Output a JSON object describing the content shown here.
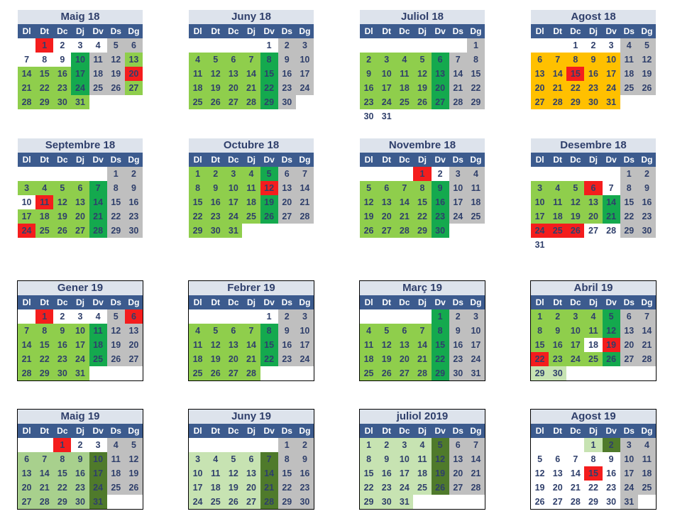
{
  "weekday_labels": [
    "Dl",
    "Dt",
    "Dc",
    "Dj",
    "Dv",
    "Ds",
    "Dg"
  ],
  "legend_colors": {
    "g": "#8fce4c",
    "dg": "#14a94e",
    "r": "#f41d1d",
    "gr": "#bfbfbf",
    "o": "#ffc000",
    "w": "#ffffff",
    "lg": "#c7e3b2",
    "mg": "#a8d08d",
    "og": "#4f7a2b"
  },
  "months": [
    {
      "title": "Maig 18",
      "offset": 1,
      "days": 31,
      "colors": [
        "r",
        "w",
        "w",
        "w",
        "gr",
        "gr",
        "w",
        "w",
        "w",
        "dg",
        "gr",
        "gr",
        "g",
        "g",
        "g",
        "g",
        "dg",
        "gr",
        "gr",
        "r",
        "g",
        "g",
        "g",
        "dg",
        "gr",
        "gr",
        "g",
        "g",
        "g",
        "g",
        "g"
      ]
    },
    {
      "title": "Juny 18",
      "offset": 4,
      "days": 30,
      "colors": [
        "w",
        "gr",
        "gr",
        "g",
        "g",
        "g",
        "g",
        "dg",
        "gr",
        "gr",
        "g",
        "g",
        "g",
        "g",
        "dg",
        "gr",
        "gr",
        "g",
        "g",
        "g",
        "g",
        "dg",
        "gr",
        "gr",
        "g",
        "g",
        "g",
        "g",
        "dg",
        "gr"
      ]
    },
    {
      "title": "Juliol 18",
      "offset": 6,
      "days": 31,
      "colors": [
        "gr",
        "g",
        "g",
        "g",
        "g",
        "dg",
        "gr",
        "gr",
        "g",
        "g",
        "g",
        "g",
        "dg",
        "gr",
        "gr",
        "g",
        "g",
        "g",
        "g",
        "dg",
        "gr",
        "gr",
        "g",
        "g",
        "g",
        "g",
        "dg",
        "gr",
        "gr",
        "w",
        "w"
      ]
    },
    {
      "title": "Agost 18",
      "offset": 2,
      "days": 31,
      "colors": [
        "w",
        "w",
        "w",
        "gr",
        "gr",
        "o",
        "o",
        "o",
        "o",
        "o",
        "gr",
        "gr",
        "o",
        "o",
        "r",
        "o",
        "o",
        "gr",
        "gr",
        "o",
        "o",
        "o",
        "o",
        "o",
        "gr",
        "gr",
        "o",
        "o",
        "o",
        "o",
        "o"
      ]
    },
    {
      "title": "Septembre 18",
      "offset": 5,
      "days": 30,
      "colors": [
        "gr",
        "gr",
        "g",
        "g",
        "g",
        "g",
        "dg",
        "gr",
        "gr",
        "w",
        "r",
        "g",
        "g",
        "dg",
        "gr",
        "gr",
        "g",
        "g",
        "g",
        "g",
        "dg",
        "gr",
        "gr",
        "r",
        "g",
        "g",
        "g",
        "dg",
        "gr",
        "gr"
      ]
    },
    {
      "title": "Octubre 18",
      "offset": 0,
      "days": 31,
      "colors": [
        "g",
        "g",
        "g",
        "g",
        "dg",
        "gr",
        "gr",
        "g",
        "g",
        "g",
        "g",
        "r",
        "gr",
        "gr",
        "g",
        "g",
        "g",
        "g",
        "dg",
        "gr",
        "gr",
        "g",
        "g",
        "g",
        "g",
        "dg",
        "gr",
        "gr",
        "g",
        "g",
        "g"
      ]
    },
    {
      "title": "Novembre 18",
      "offset": 3,
      "days": 30,
      "colors": [
        "r",
        "w",
        "gr",
        "gr",
        "g",
        "g",
        "g",
        "g",
        "dg",
        "gr",
        "gr",
        "g",
        "g",
        "g",
        "g",
        "dg",
        "gr",
        "gr",
        "g",
        "g",
        "g",
        "g",
        "dg",
        "gr",
        "gr",
        "g",
        "g",
        "g",
        "g",
        "dg"
      ]
    },
    {
      "title": "Desembre 18",
      "offset": 5,
      "days": 31,
      "colors": [
        "gr",
        "gr",
        "g",
        "g",
        "g",
        "r",
        "w",
        "gr",
        "gr",
        "g",
        "g",
        "g",
        "g",
        "dg",
        "gr",
        "gr",
        "g",
        "g",
        "g",
        "g",
        "dg",
        "gr",
        "gr",
        "r",
        "r",
        "r",
        "w",
        "w",
        "gr",
        "gr",
        "w"
      ]
    },
    {
      "title": "Gener 19",
      "offset": 1,
      "days": 31,
      "colors": [
        "r",
        "w",
        "w",
        "w",
        "gr",
        "r",
        "g",
        "g",
        "g",
        "g",
        "dg",
        "gr",
        "gr",
        "g",
        "g",
        "g",
        "g",
        "dg",
        "gr",
        "gr",
        "g",
        "g",
        "g",
        "g",
        "dg",
        "gr",
        "gr",
        "g",
        "g",
        "g",
        "g"
      ]
    },
    {
      "title": "Febrer 19",
      "offset": 4,
      "days": 28,
      "colors": [
        "w",
        "gr",
        "gr",
        "g",
        "g",
        "g",
        "g",
        "dg",
        "gr",
        "gr",
        "g",
        "g",
        "g",
        "g",
        "dg",
        "gr",
        "gr",
        "g",
        "g",
        "g",
        "g",
        "dg",
        "gr",
        "gr",
        "g",
        "g",
        "g",
        "g"
      ]
    },
    {
      "title": "Març 19",
      "offset": 4,
      "days": 31,
      "colors": [
        "dg",
        "gr",
        "gr",
        "g",
        "g",
        "g",
        "g",
        "dg",
        "gr",
        "gr",
        "g",
        "g",
        "g",
        "g",
        "dg",
        "gr",
        "gr",
        "g",
        "g",
        "g",
        "g",
        "dg",
        "gr",
        "gr",
        "g",
        "g",
        "g",
        "g",
        "dg",
        "gr",
        "gr"
      ]
    },
    {
      "title": "Abril 19",
      "offset": 0,
      "days": 30,
      "colors": [
        "g",
        "g",
        "g",
        "g",
        "dg",
        "gr",
        "gr",
        "g",
        "g",
        "g",
        "g",
        "dg",
        "gr",
        "gr",
        "g",
        "g",
        "g",
        "w",
        "r",
        "gr",
        "gr",
        "r",
        "g",
        "g",
        "g",
        "dg",
        "gr",
        "gr",
        "lg",
        "lg"
      ]
    },
    {
      "title": "Maig 19",
      "offset": 2,
      "days": 31,
      "colors": [
        "r",
        "w",
        "w",
        "gr",
        "gr",
        "mg",
        "mg",
        "mg",
        "mg",
        "og",
        "gr",
        "gr",
        "mg",
        "mg",
        "mg",
        "mg",
        "og",
        "gr",
        "gr",
        "mg",
        "mg",
        "mg",
        "mg",
        "og",
        "gr",
        "gr",
        "mg",
        "mg",
        "mg",
        "mg",
        "og"
      ]
    },
    {
      "title": "Juny 19",
      "offset": 5,
      "days": 30,
      "colors": [
        "gr",
        "gr",
        "lg",
        "lg",
        "lg",
        "lg",
        "og",
        "gr",
        "gr",
        "lg",
        "lg",
        "lg",
        "lg",
        "og",
        "gr",
        "gr",
        "lg",
        "lg",
        "lg",
        "lg",
        "og",
        "gr",
        "gr",
        "lg",
        "lg",
        "lg",
        "lg",
        "og",
        "gr",
        "gr"
      ]
    },
    {
      "title": "juliol 2019",
      "offset": 0,
      "days": 31,
      "colors": [
        "lg",
        "lg",
        "lg",
        "lg",
        "og",
        "gr",
        "gr",
        "lg",
        "lg",
        "lg",
        "lg",
        "og",
        "gr",
        "gr",
        "lg",
        "lg",
        "lg",
        "lg",
        "og",
        "gr",
        "gr",
        "lg",
        "lg",
        "lg",
        "lg",
        "og",
        "gr",
        "gr",
        "lg",
        "lg",
        "lg"
      ]
    },
    {
      "title": "Agost 19",
      "offset": 3,
      "days": 31,
      "colors": [
        "lg",
        "og",
        "gr",
        "gr",
        "w",
        "w",
        "w",
        "w",
        "w",
        "gr",
        "gr",
        "w",
        "w",
        "w",
        "r",
        "w",
        "gr",
        "gr",
        "w",
        "w",
        "w",
        "w",
        "w",
        "gr",
        "gr",
        "w",
        "w",
        "w",
        "w",
        "w",
        "gr"
      ]
    }
  ]
}
